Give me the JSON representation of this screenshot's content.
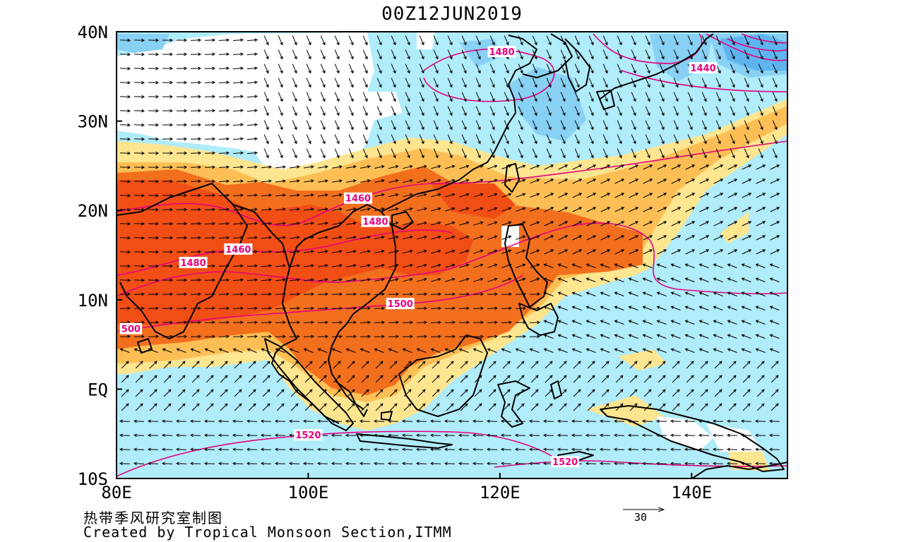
{
  "title": "00Z12JUN2019",
  "axes": {
    "x_ticks": [
      "80E",
      "100E",
      "120E",
      "140E"
    ],
    "x_values": [
      80,
      100,
      120,
      140
    ],
    "y_ticks": [
      "40N",
      "30N",
      "20N",
      "10N",
      "EQ",
      "10S"
    ],
    "y_values": [
      40,
      30,
      20,
      10,
      0,
      -10
    ],
    "lon_range": [
      80,
      150
    ],
    "lat_range": [
      -10,
      40
    ]
  },
  "contour_labels": [
    {
      "text": "1480",
      "lon": 120.2,
      "lat": 37.7
    },
    {
      "text": "1440",
      "lon": 141.2,
      "lat": 35.9
    },
    {
      "text": "1460",
      "lon": 105.2,
      "lat": 21.3
    },
    {
      "text": "1480",
      "lon": 107.0,
      "lat": 18.7
    },
    {
      "text": "1460",
      "lon": 92.7,
      "lat": 15.6
    },
    {
      "text": "1480",
      "lon": 88.0,
      "lat": 14.1
    },
    {
      "text": "1500",
      "lon": 109.6,
      "lat": 9.5
    },
    {
      "text": "500",
      "lon": 81.5,
      "lat": 6.7
    },
    {
      "text": "1520",
      "lon": 100.0,
      "lat": -5.2
    },
    {
      "text": "1520",
      "lon": 126.8,
      "lat": -8.2
    }
  ],
  "colors": {
    "ocean_light_blue": "#b0ecfa",
    "blue_mid": "#88d0f4",
    "blue_dark": "#5eb4ee",
    "yellow": "#fee590",
    "yellow_orange": "#fdbf55",
    "orange": "#f26f1e",
    "red_orange": "#f14e15",
    "contour": "#e6007e",
    "coast": "#000000"
  },
  "footer": {
    "chinese": "热带季风研究室制图",
    "english": "Created by Tropical Monsoon Section,ITMM"
  },
  "reference_vector": {
    "label": "30",
    "magnitude": 30
  }
}
